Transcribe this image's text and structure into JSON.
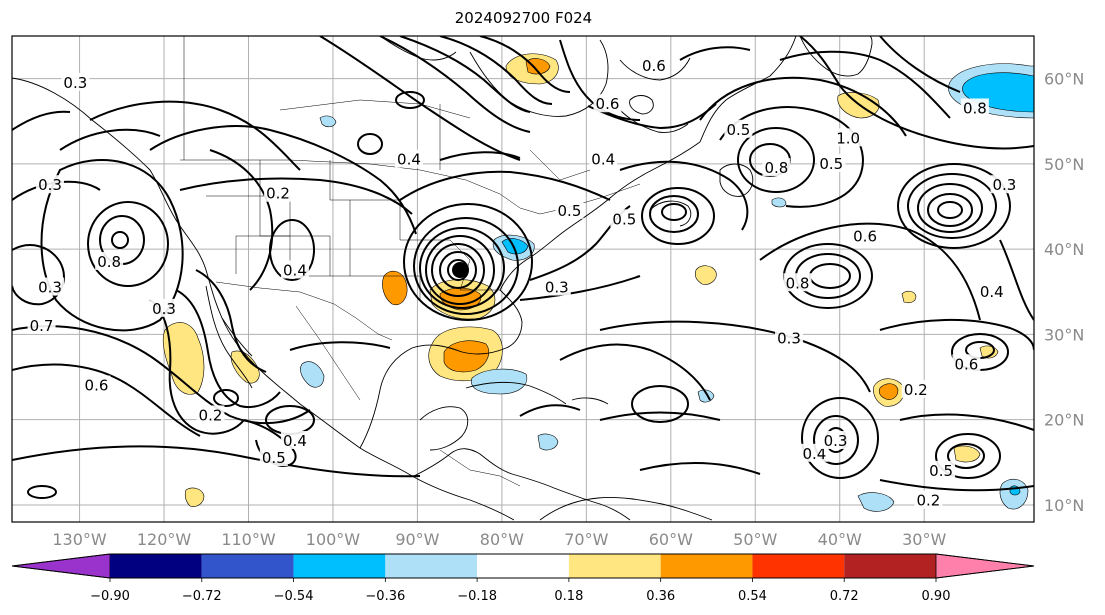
{
  "figure": {
    "title": "2024092700 F024"
  },
  "axes": {
    "lon_ticks": [
      "130°W",
      "120°W",
      "110°W",
      "100°W",
      "90°W",
      "80°W",
      "70°W",
      "60°W",
      "50°W",
      "40°W",
      "30°W"
    ],
    "lat_ticks": [
      "60°N",
      "50°N",
      "40°N",
      "30°N",
      "20°N",
      "10°N"
    ],
    "lon_range": [
      -138,
      -17
    ],
    "lat_range": [
      8,
      65
    ],
    "grid": true,
    "lat_labels_side": "right"
  },
  "colorbar": {
    "orientation": "horizontal",
    "placement": "bottom",
    "extend": "both",
    "boundaries": [
      -0.9,
      -0.72,
      -0.54,
      -0.36,
      -0.18,
      0.18,
      0.36,
      0.54,
      0.72,
      0.9
    ],
    "labels": [
      "−0.90",
      "−0.72",
      "−0.54",
      "−0.36",
      "−0.18",
      "0.18",
      "0.36",
      "0.54",
      "0.72",
      "0.90"
    ],
    "colors": [
      "#9933cc",
      "#000080",
      "#3355cc",
      "#00bfff",
      "#aee0f8",
      "#ffffff",
      "#ffe680",
      "#ff9900",
      "#ff3300",
      "#b22222",
      "#ff80aa"
    ]
  },
  "contour_labels": [
    {
      "text": "0.3",
      "lon": -130.5,
      "lat": 59.5
    },
    {
      "text": "0.3",
      "lon": -133.5,
      "lat": 47.5
    },
    {
      "text": "0.3",
      "lon": -133.5,
      "lat": 35.5
    },
    {
      "text": "0.7",
      "lon": -134.5,
      "lat": 31.0
    },
    {
      "text": "0.6",
      "lon": -128.0,
      "lat": 24.0
    },
    {
      "text": "0.8",
      "lon": -126.5,
      "lat": 38.5
    },
    {
      "text": "0.3",
      "lon": -120.0,
      "lat": 33.0
    },
    {
      "text": "0.2",
      "lon": -114.5,
      "lat": 20.5
    },
    {
      "text": "0.5",
      "lon": -107.0,
      "lat": 15.5
    },
    {
      "text": "0.4",
      "lon": -104.5,
      "lat": 17.5
    },
    {
      "text": "0.2",
      "lon": -106.5,
      "lat": 46.5
    },
    {
      "text": "0.4",
      "lon": -104.5,
      "lat": 37.5
    },
    {
      "text": "0.4",
      "lon": -91.0,
      "lat": 50.5
    },
    {
      "text": "0.4",
      "lon": -68.0,
      "lat": 50.5
    },
    {
      "text": "0.6",
      "lon": -67.5,
      "lat": 57.0
    },
    {
      "text": "0.6",
      "lon": -62.0,
      "lat": 61.5
    },
    {
      "text": "0.5",
      "lon": -52.0,
      "lat": 54.0
    },
    {
      "text": "0.5",
      "lon": -65.5,
      "lat": 43.5
    },
    {
      "text": "0.8",
      "lon": -47.5,
      "lat": 49.5
    },
    {
      "text": "0.8",
      "lon": -24.0,
      "lat": 56.5
    },
    {
      "text": "1.0",
      "lon": -39.0,
      "lat": 53.0
    },
    {
      "text": "0.5",
      "lon": -41.0,
      "lat": 50.0
    },
    {
      "text": "0.6",
      "lon": -37.0,
      "lat": 41.5
    },
    {
      "text": "0.8",
      "lon": -45.0,
      "lat": 36.0
    },
    {
      "text": "0.3",
      "lon": -73.5,
      "lat": 35.5
    },
    {
      "text": "0.3",
      "lon": -46.0,
      "lat": 29.5
    },
    {
      "text": "0.2",
      "lon": -31.0,
      "lat": 23.5
    },
    {
      "text": "0.4",
      "lon": -43.0,
      "lat": 16.0
    },
    {
      "text": "0.3",
      "lon": -40.5,
      "lat": 17.5
    },
    {
      "text": "0.2",
      "lon": -29.5,
      "lat": 10.5
    },
    {
      "text": "0.5",
      "lon": -28.0,
      "lat": 14.0
    },
    {
      "text": "0.6",
      "lon": -25.0,
      "lat": 26.5
    },
    {
      "text": "0.4",
      "lon": -22.0,
      "lat": 35.0
    },
    {
      "text": "0.3",
      "lon": -20.5,
      "lat": 47.5
    },
    {
      "text": "0.5",
      "lon": -72.0,
      "lat": 44.5
    }
  ]
}
